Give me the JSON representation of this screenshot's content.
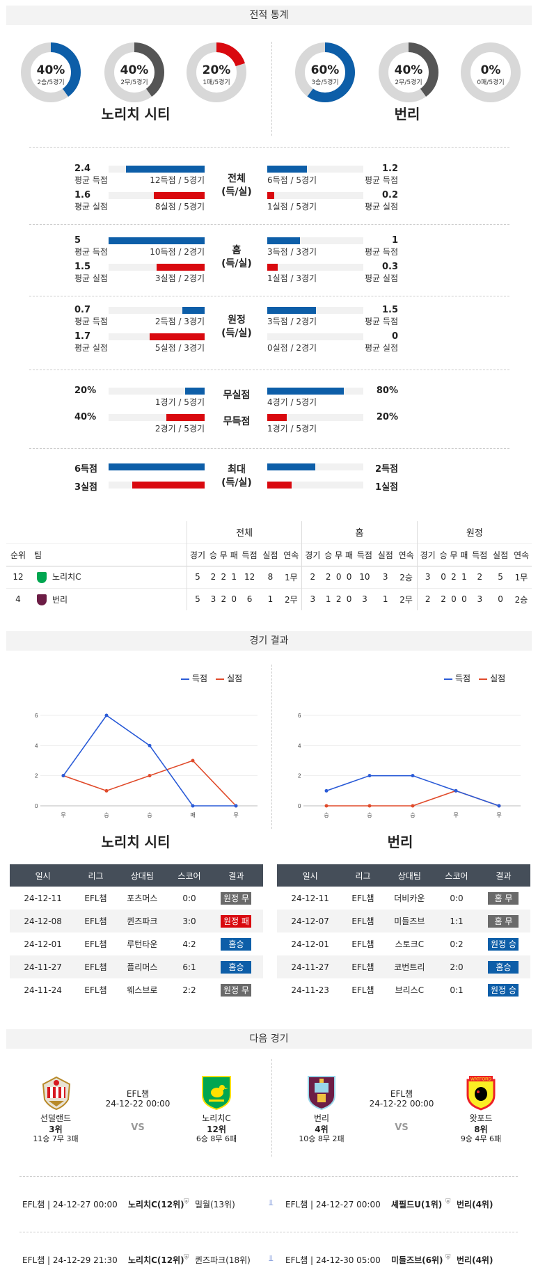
{
  "sections": {
    "stats": "전적 통계",
    "results": "경기 결과",
    "next": "다음 경기"
  },
  "home": {
    "name": "노리치 시티",
    "short": "노리치C"
  },
  "away": {
    "name": "번리",
    "short": "번리"
  },
  "donuts": [
    {
      "pct": "40%",
      "sub": "2승/5경기",
      "value": 0.4,
      "color": "#0d5ea8"
    },
    {
      "pct": "40%",
      "sub": "2무/5경기",
      "value": 0.4,
      "color": "#555555"
    },
    {
      "pct": "20%",
      "sub": "1패/5경기",
      "value": 0.2,
      "color": "#d9090f"
    },
    {
      "pct": "60%",
      "sub": "3승/5경기",
      "value": 0.6,
      "color": "#0d5ea8"
    },
    {
      "pct": "40%",
      "sub": "2무/5경기",
      "value": 0.4,
      "color": "#555555"
    },
    {
      "pct": "0%",
      "sub": "0패/5경기",
      "value": 0,
      "color": "#d9090f"
    }
  ],
  "stat_groups": [
    {
      "label1": "전체",
      "label2": "(득/실)",
      "rows": [
        {
          "lnum": "2.4",
          "llbl": "평균 득점",
          "lcap": "12득점 / 5경기",
          "lval": 0.82,
          "rnum": "1.2",
          "rlbl": "평균 득점",
          "rcap": "6득점 / 5경기",
          "rval": 0.41,
          "color": "blue"
        },
        {
          "lnum": "1.6",
          "llbl": "평균 실점",
          "lcap": "8실점 / 5경기",
          "lval": 0.53,
          "rnum": "0.2",
          "rlbl": "평균 실점",
          "rcap": "1실점 / 5경기",
          "rval": 0.07,
          "color": "red"
        }
      ]
    },
    {
      "label1": "홈",
      "label2": "(득/실)",
      "rows": [
        {
          "lnum": "5",
          "llbl": "평균 득점",
          "lcap": "10득점 / 2경기",
          "lval": 1.0,
          "rnum": "1",
          "rlbl": "평균 득점",
          "rcap": "3득점 / 3경기",
          "rval": 0.34,
          "color": "blue"
        },
        {
          "lnum": "1.5",
          "llbl": "평균 실점",
          "lcap": "3실점 / 2경기",
          "lval": 0.5,
          "rnum": "0.3",
          "rlbl": "평균 실점",
          "rcap": "1실점 / 3경기",
          "rval": 0.11,
          "color": "red"
        }
      ]
    },
    {
      "label1": "원정",
      "label2": "(득/실)",
      "rows": [
        {
          "lnum": "0.7",
          "llbl": "평균 득점",
          "lcap": "2득점 / 3경기",
          "lval": 0.23,
          "rnum": "1.5",
          "rlbl": "평균 득점",
          "rcap": "3득점 / 2경기",
          "rval": 0.51,
          "color": "blue"
        },
        {
          "lnum": "1.7",
          "llbl": "평균 실점",
          "lcap": "5실점 / 3경기",
          "lval": 0.57,
          "rnum": "0",
          "rlbl": "평균 실점",
          "rcap": "0실점 / 2경기",
          "rval": 0,
          "color": "red"
        }
      ]
    }
  ],
  "clean": {
    "rows": [
      {
        "mid": "무실점",
        "lnum": "20%",
        "lcap": "1경기 / 5경기",
        "lval": 0.2,
        "rnum": "80%",
        "rcap": "4경기 / 5경기",
        "rval": 0.8,
        "color": "blue"
      },
      {
        "mid": "무득점",
        "lnum": "40%",
        "lcap": "2경기 / 5경기",
        "lval": 0.4,
        "rnum": "20%",
        "rcap": "1경기 / 5경기",
        "rval": 0.2,
        "color": "red"
      }
    ]
  },
  "maxrow": {
    "label1": "최대",
    "label2": "(득/실)",
    "rows": [
      {
        "lnum": "6득점",
        "lval": 1.0,
        "rnum": "2득점",
        "rval": 0.5,
        "color": "blue"
      },
      {
        "lnum": "3실점",
        "lval": 0.75,
        "rnum": "1실점",
        "rval": 0.25,
        "color": "red"
      }
    ]
  },
  "standings": {
    "groups": [
      "전체",
      "홈",
      "원정"
    ],
    "cols": [
      "경기",
      "승",
      "무",
      "패",
      "득점",
      "실점",
      "연속"
    ],
    "rank_hdr": "순위",
    "team_hdr": "팀",
    "rows": [
      {
        "rank": "12",
        "team": "노리치C",
        "vals": [
          "5",
          "2",
          "2",
          "1",
          "12",
          "8",
          "1무",
          "2",
          "2",
          "0",
          "0",
          "10",
          "3",
          "2승",
          "3",
          "0",
          "2",
          "1",
          "2",
          "5",
          "1무"
        ]
      },
      {
        "rank": "4",
        "team": "번리",
        "vals": [
          "5",
          "3",
          "2",
          "0",
          "6",
          "1",
          "2무",
          "3",
          "1",
          "2",
          "0",
          "3",
          "1",
          "2무",
          "2",
          "2",
          "0",
          "0",
          "3",
          "0",
          "2승"
        ]
      }
    ]
  },
  "chart_legend": {
    "scored": "득점",
    "conceded": "실점"
  },
  "chart_data": [
    {
      "type": "line",
      "team": "노리치 시티",
      "x": [
        "무",
        "승",
        "승",
        "패",
        "무"
      ],
      "series": [
        {
          "name": "득점",
          "values": [
            2,
            6,
            4,
            0,
            0
          ],
          "color": "#2a5bd7"
        },
        {
          "name": "실점",
          "values": [
            2,
            1,
            2,
            3,
            0
          ],
          "color": "#e04a2a"
        }
      ],
      "ylim": [
        0,
        6
      ],
      "yticks": [
        0,
        2,
        4,
        6
      ]
    },
    {
      "type": "line",
      "team": "번리",
      "x": [
        "승",
        "승",
        "승",
        "무",
        "무"
      ],
      "series": [
        {
          "name": "득점",
          "values": [
            1,
            2,
            2,
            1,
            0
          ],
          "color": "#2a5bd7"
        },
        {
          "name": "실점",
          "values": [
            0,
            0,
            0,
            1,
            0
          ],
          "color": "#e04a2a"
        }
      ],
      "ylim": [
        0,
        6
      ],
      "yticks": [
        0,
        2,
        4,
        6
      ]
    }
  ],
  "results": {
    "headers": [
      "일시",
      "리그",
      "상대팀",
      "스코어",
      "결과"
    ],
    "home": [
      {
        "date": "24-12-11",
        "league": "EFL챔",
        "opp": "포츠머스",
        "score": "0:0",
        "res": "원정 무",
        "cls": "b-gray"
      },
      {
        "date": "24-12-08",
        "league": "EFL챔",
        "opp": "퀸즈파크",
        "score": "3:0",
        "res": "원정 패",
        "cls": "b-red"
      },
      {
        "date": "24-12-01",
        "league": "EFL챔",
        "opp": "루턴타운",
        "score": "4:2",
        "res": "홈승",
        "cls": "b-blue"
      },
      {
        "date": "24-11-27",
        "league": "EFL챔",
        "opp": "플리머스",
        "score": "6:1",
        "res": "홈승",
        "cls": "b-blue"
      },
      {
        "date": "24-11-24",
        "league": "EFL챔",
        "opp": "웨스브로",
        "score": "2:2",
        "res": "원정 무",
        "cls": "b-gray"
      }
    ],
    "away": [
      {
        "date": "24-12-11",
        "league": "EFL챔",
        "opp": "더비카운",
        "score": "0:0",
        "res": "홈 무",
        "cls": "b-gray"
      },
      {
        "date": "24-12-07",
        "league": "EFL챔",
        "opp": "미들즈브",
        "score": "1:1",
        "res": "홈 무",
        "cls": "b-gray"
      },
      {
        "date": "24-12-01",
        "league": "EFL챔",
        "opp": "스토크C",
        "score": "0:2",
        "res": "원정 승",
        "cls": "b-blue"
      },
      {
        "date": "24-11-27",
        "league": "EFL챔",
        "opp": "코번트리",
        "score": "2:0",
        "res": "홈승",
        "cls": "b-blue"
      },
      {
        "date": "24-11-23",
        "league": "EFL챔",
        "opp": "브리스C",
        "score": "0:1",
        "res": "원정 승",
        "cls": "b-blue"
      }
    ]
  },
  "fixtures": [
    {
      "league": "EFL챔",
      "date": "24-12-22 00:00",
      "vs": "VS",
      "t1": {
        "name": "선덜랜드",
        "rank": "3위",
        "rec": "11승 7무 3패"
      },
      "t2": {
        "name": "노리치C",
        "rank": "12위",
        "rec": "6승 8무 6패"
      }
    },
    {
      "league": "EFL챔",
      "date": "24-12-22 00:00",
      "vs": "VS",
      "t1": {
        "name": "번리",
        "rank": "4위",
        "rec": "10승 8무 2패"
      },
      "t2": {
        "name": "왓포드",
        "rank": "8위",
        "rec": "9승 4무 6패"
      },
      "badge_text": "WATFORD"
    }
  ],
  "next_list": [
    {
      "l": "EFL챔 | 24-12-27 00:00",
      "lt1": "노리치C(12위)",
      "lt2": "밀월(13위)",
      "r": "EFL챔 | 24-12-27 00:00",
      "rt1": "셰필드U(1위)",
      "rt2": "번리(4위)"
    },
    {
      "l": "EFL챔 | 24-12-29 21:30",
      "lt1": "노리치C(12위)",
      "lt2": "퀸즈파크(18위)",
      "r": "EFL챔 | 24-12-30 05:00",
      "rt1": "미들즈브(6위)",
      "rt2": "번리(4위)"
    }
  ]
}
